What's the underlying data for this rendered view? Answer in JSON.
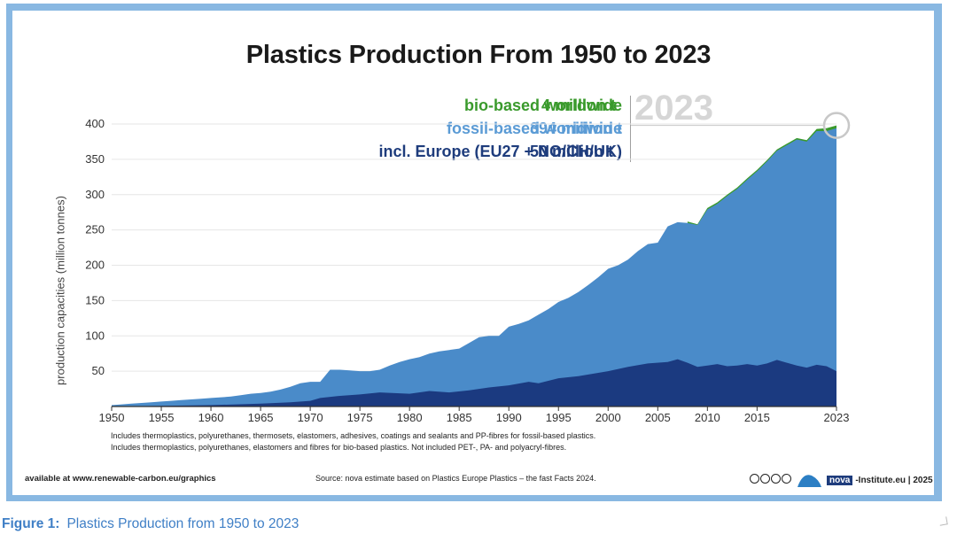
{
  "title": "Plastics Production From 1950 to 2023",
  "legend": {
    "bio_label": "bio-based worldwide",
    "bio_value": "4 million t",
    "fossil_label": "fossil-based worldwide",
    "fossil_value": "394 million t",
    "europe_label": "incl. Europe (EU27 + NO/CH/UK)",
    "europe_value": "50 million t",
    "year": "2023"
  },
  "colors": {
    "bio": "#3a9a2c",
    "fossil": "#4a8bc9",
    "europe": "#1b3a80",
    "frame": "#89b8e2",
    "caption": "#3f7fc6"
  },
  "notes": {
    "line1": "Includes thermoplastics, polyurethanes, thermosets, elastomers, adhesives, coatings and sealants and PP-fibres for fossil-based plastics.",
    "line2": "Includes thermoplastics, polyurethanes, elastomers and fibres for bio-based plastics. Not included PET-, PA- and polyacryl-fibres."
  },
  "footer": {
    "available": "available at www.renewable-carbon.eu/graphics",
    "source": "Source: nova estimate based on Plastics Europe Plastics – the fast Facts 2024.",
    "brand_mark": "nova",
    "institute": "-Institute.eu | 2025",
    "license_icon": "creative-commons-icons"
  },
  "caption": {
    "label": "Figure 1:",
    "text": "Plastics Production from 1950 to 2023"
  },
  "chart_data": {
    "type": "area",
    "title": "Plastics Production From 1950 to 2023",
    "xlabel": "",
    "ylabel": "production capacities (million tonnes)",
    "x_ticks": [
      "1950",
      "1955",
      "1960",
      "1965",
      "1970",
      "1975",
      "1980",
      "1985",
      "1990",
      "1995",
      "2000",
      "2005",
      "2010",
      "2015",
      "2023"
    ],
    "y_ticks": [
      50,
      100,
      150,
      200,
      250,
      300,
      350,
      400
    ],
    "xlim": [
      1950,
      2023
    ],
    "ylim": [
      0,
      400
    ],
    "grid": "horizontal",
    "series": [
      {
        "name": "bio-based worldwide",
        "kind": "top-band",
        "points": [
          [
            2008,
            262
          ],
          [
            2009,
            258
          ],
          [
            2010,
            281
          ],
          [
            2011,
            289
          ],
          [
            2012,
            300
          ],
          [
            2013,
            310
          ],
          [
            2014,
            323
          ],
          [
            2015,
            335
          ],
          [
            2016,
            349
          ],
          [
            2017,
            364
          ],
          [
            2018,
            372
          ],
          [
            2019,
            380
          ],
          [
            2020,
            377
          ],
          [
            2021,
            393
          ],
          [
            2022,
            394
          ],
          [
            2023,
            398
          ]
        ]
      },
      {
        "name": "fossil-based worldwide",
        "points": [
          [
            1950,
            2
          ],
          [
            1951,
            3
          ],
          [
            1952,
            4
          ],
          [
            1953,
            5
          ],
          [
            1954,
            6
          ],
          [
            1955,
            7
          ],
          [
            1956,
            8
          ],
          [
            1957,
            9
          ],
          [
            1958,
            10
          ],
          [
            1959,
            11
          ],
          [
            1960,
            12
          ],
          [
            1961,
            13
          ],
          [
            1962,
            14
          ],
          [
            1963,
            16
          ],
          [
            1964,
            18
          ],
          [
            1965,
            19
          ],
          [
            1966,
            21
          ],
          [
            1967,
            24
          ],
          [
            1968,
            28
          ],
          [
            1969,
            33
          ],
          [
            1970,
            35
          ],
          [
            1971,
            35
          ],
          [
            1972,
            52
          ],
          [
            1973,
            52
          ],
          [
            1974,
            51
          ],
          [
            1975,
            50
          ],
          [
            1976,
            50
          ],
          [
            1977,
            52
          ],
          [
            1978,
            58
          ],
          [
            1979,
            63
          ],
          [
            1980,
            67
          ],
          [
            1981,
            70
          ],
          [
            1982,
            75
          ],
          [
            1983,
            78
          ],
          [
            1984,
            80
          ],
          [
            1985,
            82
          ],
          [
            1986,
            90
          ],
          [
            1987,
            98
          ],
          [
            1988,
            100
          ],
          [
            1989,
            100
          ],
          [
            1990,
            113
          ],
          [
            1991,
            117
          ],
          [
            1992,
            122
          ],
          [
            1993,
            130
          ],
          [
            1994,
            138
          ],
          [
            1995,
            148
          ],
          [
            1996,
            154
          ],
          [
            1997,
            162
          ],
          [
            1998,
            172
          ],
          [
            1999,
            183
          ],
          [
            2000,
            195
          ],
          [
            2001,
            200
          ],
          [
            2002,
            208
          ],
          [
            2003,
            220
          ],
          [
            2004,
            230
          ],
          [
            2005,
            232
          ],
          [
            2006,
            255
          ],
          [
            2007,
            261
          ],
          [
            2008,
            260
          ],
          [
            2009,
            257
          ],
          [
            2010,
            279
          ],
          [
            2011,
            287
          ],
          [
            2012,
            298
          ],
          [
            2013,
            308
          ],
          [
            2014,
            321
          ],
          [
            2015,
            333
          ],
          [
            2016,
            347
          ],
          [
            2017,
            362
          ],
          [
            2018,
            370
          ],
          [
            2019,
            378
          ],
          [
            2020,
            375
          ],
          [
            2021,
            390
          ],
          [
            2022,
            390
          ],
          [
            2023,
            394
          ]
        ]
      },
      {
        "name": "incl. Europe (EU27 + NO/CH/UK)",
        "points": [
          [
            1950,
            0
          ],
          [
            1955,
            1
          ],
          [
            1960,
            2
          ],
          [
            1965,
            4
          ],
          [
            1968,
            6
          ],
          [
            1970,
            8
          ],
          [
            1971,
            12
          ],
          [
            1973,
            15
          ],
          [
            1975,
            17
          ],
          [
            1977,
            20
          ],
          [
            1980,
            18
          ],
          [
            1982,
            22
          ],
          [
            1984,
            20
          ],
          [
            1986,
            23
          ],
          [
            1988,
            27
          ],
          [
            1990,
            30
          ],
          [
            1992,
            35
          ],
          [
            1993,
            33
          ],
          [
            1995,
            40
          ],
          [
            1997,
            43
          ],
          [
            2000,
            50
          ],
          [
            2002,
            56
          ],
          [
            2004,
            61
          ],
          [
            2006,
            63
          ],
          [
            2007,
            67
          ],
          [
            2008,
            62
          ],
          [
            2009,
            56
          ],
          [
            2010,
            58
          ],
          [
            2011,
            60
          ],
          [
            2012,
            57
          ],
          [
            2013,
            58
          ],
          [
            2014,
            60
          ],
          [
            2015,
            58
          ],
          [
            2016,
            61
          ],
          [
            2017,
            66
          ],
          [
            2018,
            62
          ],
          [
            2019,
            58
          ],
          [
            2020,
            55
          ],
          [
            2021,
            59
          ],
          [
            2022,
            57
          ],
          [
            2023,
            50
          ]
        ]
      }
    ]
  }
}
